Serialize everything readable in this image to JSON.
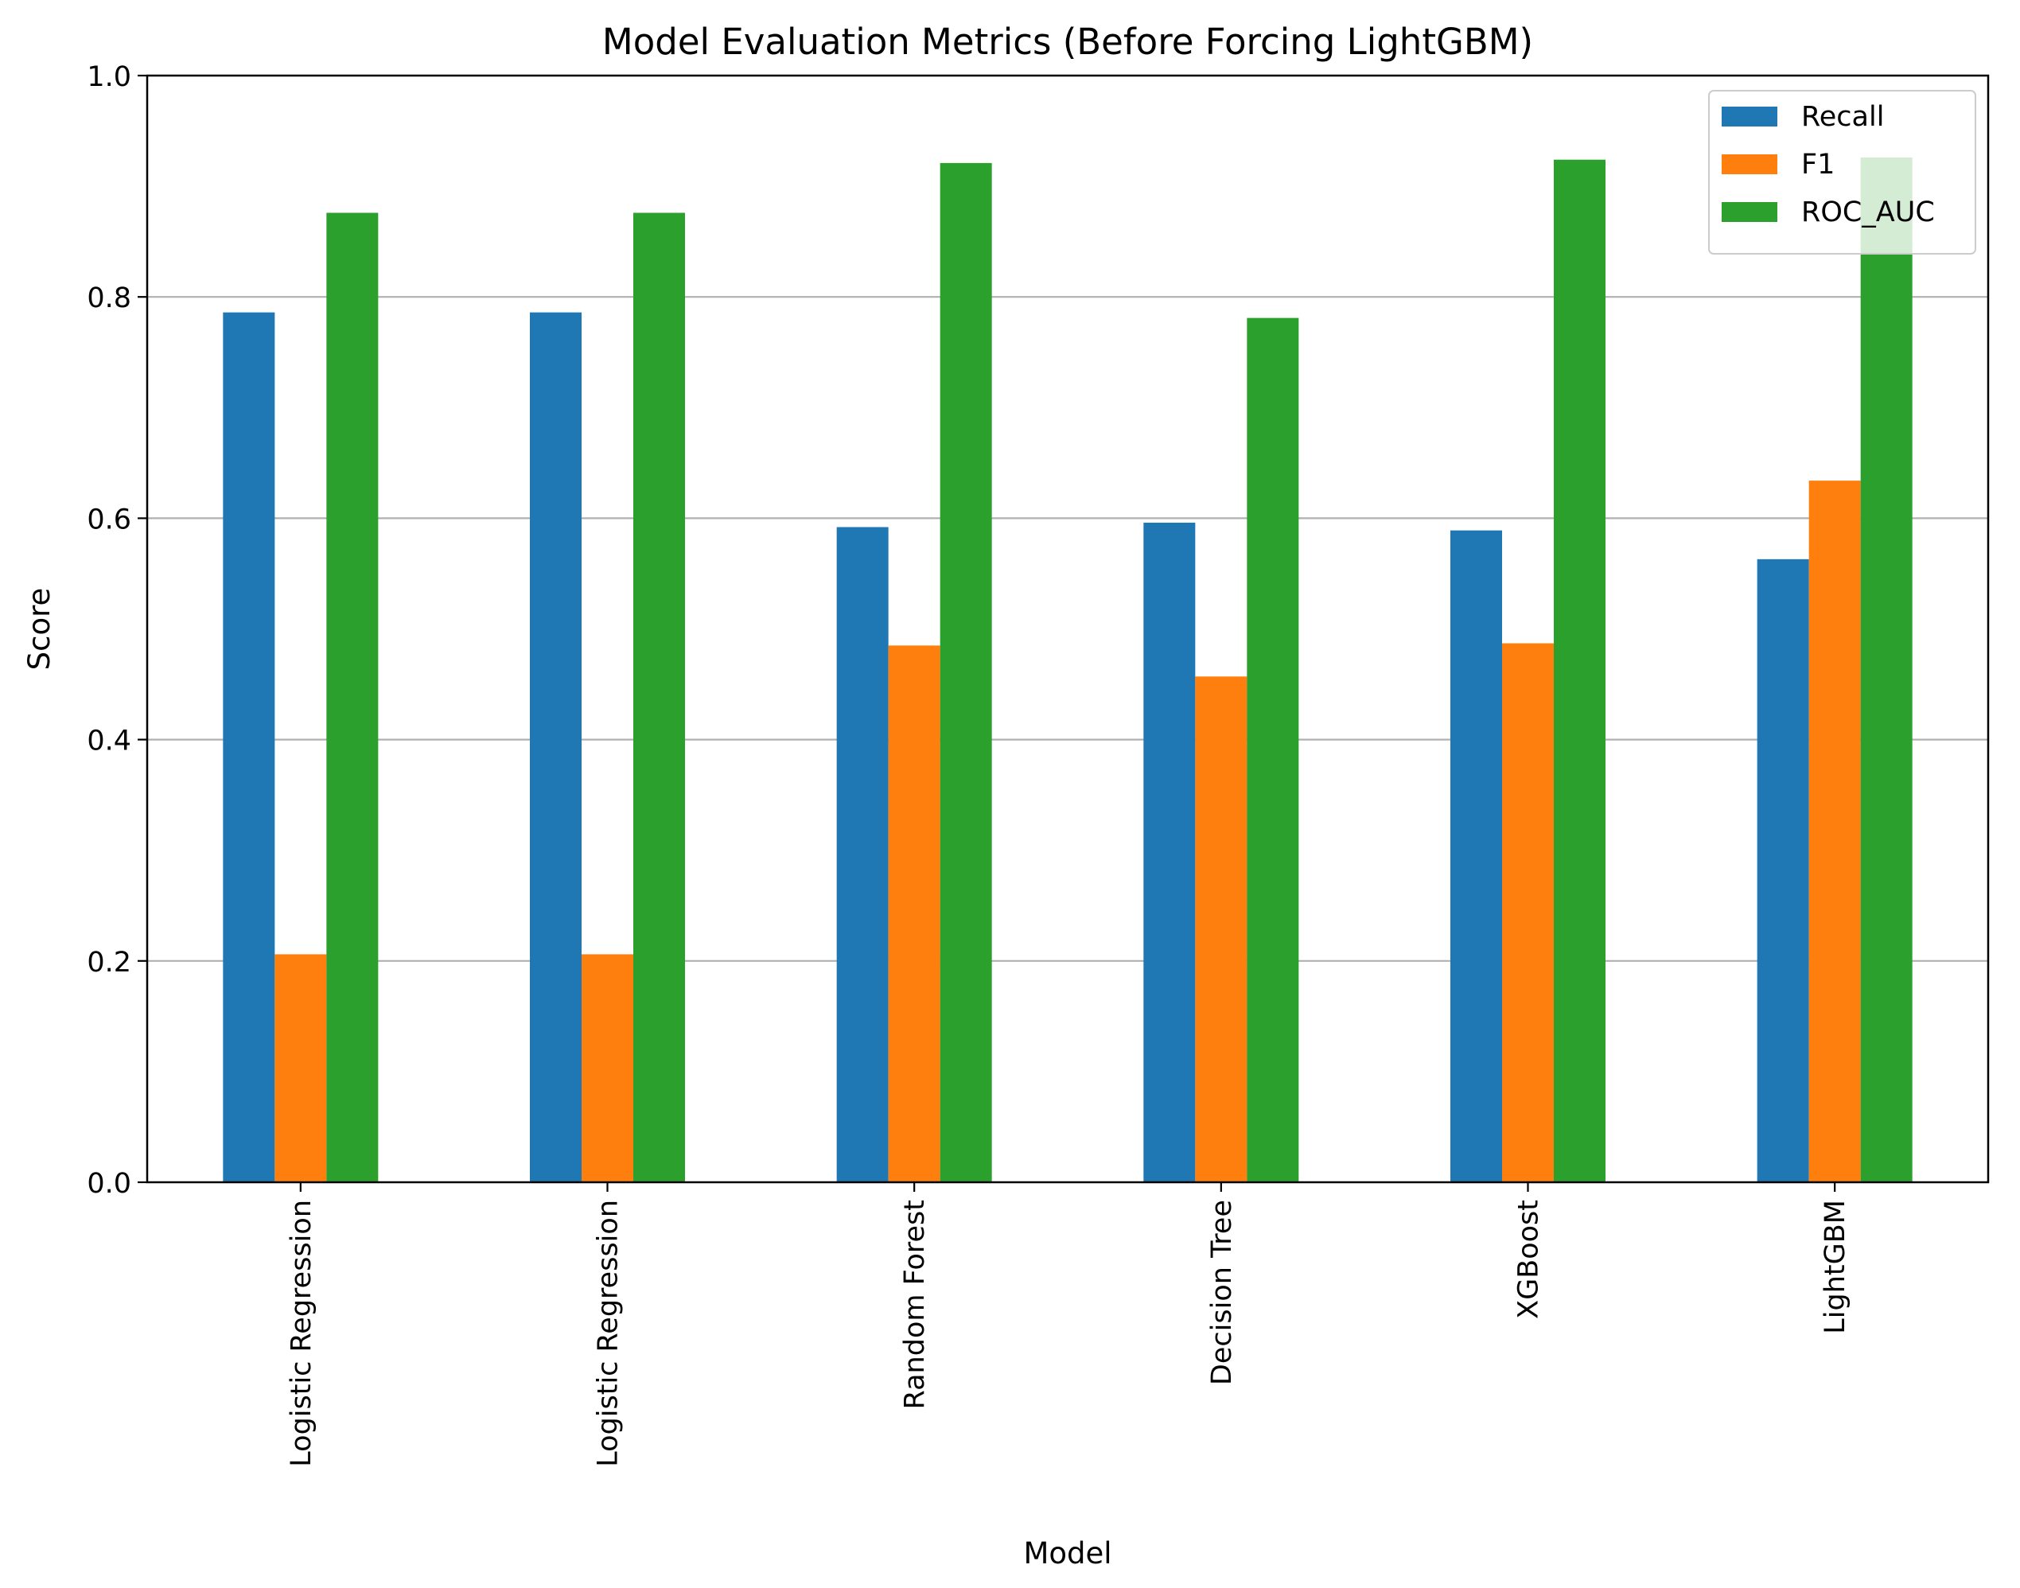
{
  "chart_data": {
    "type": "bar",
    "title": "Model Evaluation Metrics (Before Forcing LightGBM)",
    "xlabel": "Model",
    "ylabel": "Score",
    "ylim": [
      0,
      1.0
    ],
    "yticks": [
      "0.0",
      "0.2",
      "0.4",
      "0.6",
      "0.8",
      "1.0"
    ],
    "grid": "horizontal",
    "legend_position": "top-right",
    "categories": [
      "Logistic Regression",
      "Logistic Regression",
      "Random Forest",
      "Decision Tree",
      "XGBoost",
      "LightGBM"
    ],
    "series": [
      {
        "name": "Recall",
        "color": "#1f77b4",
        "values": [
          0.786,
          0.786,
          0.592,
          0.596,
          0.589,
          0.563
        ]
      },
      {
        "name": "F1",
        "color": "#ff7f0e",
        "values": [
          0.206,
          0.206,
          0.485,
          0.457,
          0.487,
          0.634
        ]
      },
      {
        "name": "ROC_AUC",
        "color": "#2ca02c",
        "values": [
          0.876,
          0.876,
          0.921,
          0.781,
          0.924,
          0.926
        ]
      }
    ]
  }
}
